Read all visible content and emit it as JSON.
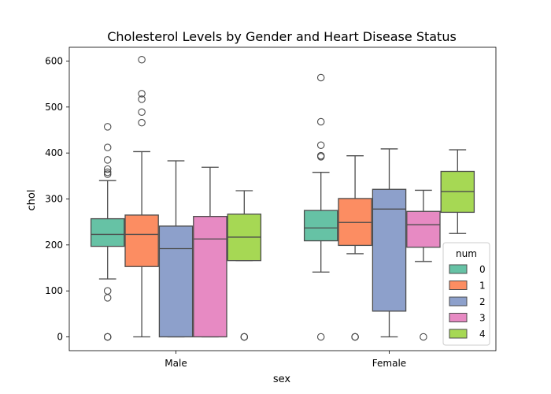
{
  "chart_data": {
    "type": "box",
    "title": "Cholesterol Levels by Gender and Heart Disease Status",
    "xlabel": "sex",
    "ylabel": "chol",
    "categories": [
      "Male",
      "Female"
    ],
    "ylim": [
      -30,
      630
    ],
    "yticks": [
      0,
      100,
      200,
      300,
      400,
      500,
      600
    ],
    "grid": false,
    "legend": {
      "title": "num",
      "placement": "lower-right"
    },
    "hue_order": [
      "0",
      "1",
      "2",
      "3",
      "4"
    ],
    "colors": [
      "#66c2a5",
      "#fc8d62",
      "#8da0cb",
      "#e78ac3",
      "#a6d854"
    ],
    "boxes": [
      {
        "category": "Male",
        "hue": "0",
        "whislo": 126,
        "q1": 197,
        "med": 223,
        "q3": 257,
        "whishi": 340,
        "fliers": [
          0,
          0,
          0,
          85,
          100,
          354,
          358,
          365,
          385,
          412,
          457
        ]
      },
      {
        "category": "Male",
        "hue": "1",
        "whislo": 0,
        "q1": 153,
        "med": 223,
        "q3": 265,
        "whishi": 403,
        "fliers": [
          466,
          489,
          517,
          529,
          603
        ]
      },
      {
        "category": "Male",
        "hue": "2",
        "whislo": 0,
        "q1": 0,
        "med": 192,
        "q3": 241,
        "whishi": 383,
        "fliers": []
      },
      {
        "category": "Male",
        "hue": "3",
        "whislo": 0,
        "q1": 0,
        "med": 213,
        "q3": 262,
        "whishi": 369,
        "fliers": []
      },
      {
        "category": "Male",
        "hue": "4",
        "whislo": 166,
        "q1": 166,
        "med": 217,
        "q3": 267,
        "whishi": 318,
        "fliers": [
          0,
          0,
          0
        ]
      },
      {
        "category": "Female",
        "hue": "0",
        "whislo": 141,
        "q1": 209,
        "med": 237,
        "q3": 275,
        "whishi": 358,
        "fliers": [
          0,
          392,
          394,
          417,
          468,
          564
        ]
      },
      {
        "category": "Female",
        "hue": "1",
        "whislo": 181,
        "q1": 199,
        "med": 249,
        "q3": 301,
        "whishi": 394,
        "fliers": [
          0,
          0,
          0
        ]
      },
      {
        "category": "Female",
        "hue": "2",
        "whislo": 0,
        "q1": 56,
        "med": 278,
        "q3": 321,
        "whishi": 409,
        "fliers": []
      },
      {
        "category": "Female",
        "hue": "3",
        "whislo": 164,
        "q1": 195,
        "med": 244,
        "q3": 273,
        "whishi": 319,
        "fliers": [
          0
        ]
      },
      {
        "category": "Female",
        "hue": "4",
        "whislo": 225,
        "q1": 271,
        "med": 316,
        "q3": 360,
        "whishi": 407,
        "fliers": []
      }
    ]
  }
}
